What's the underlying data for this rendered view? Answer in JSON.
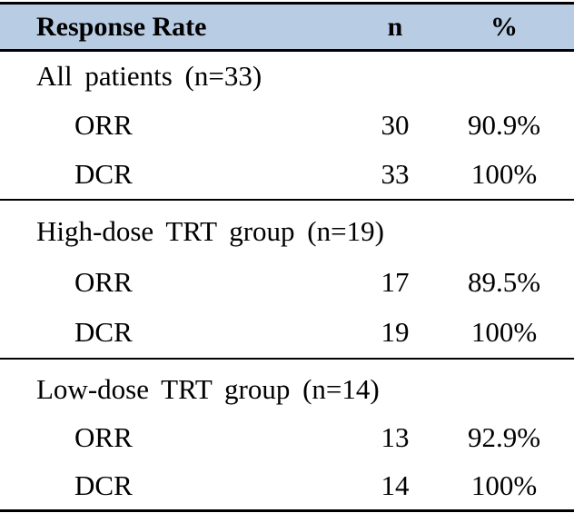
{
  "table": {
    "header": {
      "response_rate": "Response Rate",
      "n": "n",
      "pct": "%"
    },
    "colors": {
      "header_bg": "#b8cce4",
      "border": "#000000",
      "text": "#000000",
      "page_bg": "#ffffff"
    },
    "sections": [
      {
        "label": "All patients (n=33)",
        "rows": [
          {
            "name": "ORR",
            "n": "30",
            "pct": "90.9%"
          },
          {
            "name": "DCR",
            "n": "33",
            "pct": "100%"
          }
        ]
      },
      {
        "label": "High-dose TRT group (n=19)",
        "rows": [
          {
            "name": "ORR",
            "n": "17",
            "pct": "89.5%"
          },
          {
            "name": "DCR",
            "n": "19",
            "pct": "100%"
          }
        ]
      },
      {
        "label": "Low-dose TRT group (n=14)",
        "rows": [
          {
            "name": "ORR",
            "n": "13",
            "pct": "92.9%"
          },
          {
            "name": "DCR",
            "n": "14",
            "pct": "100%"
          }
        ]
      }
    ]
  }
}
